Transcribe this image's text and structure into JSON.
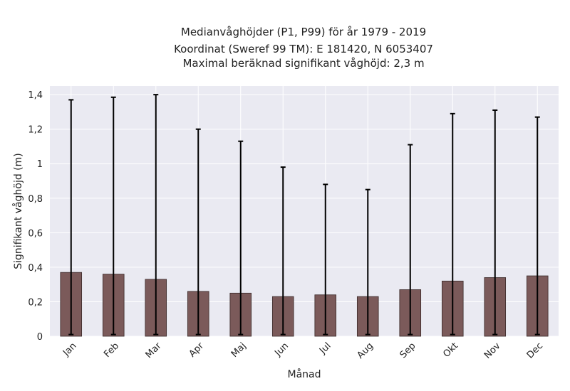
{
  "chart_data": {
    "type": "bar",
    "title_lines": [
      "Medianvåghöjder (P1, P99) för år 1979 - 2019",
      "Koordinat (Sweref 99 TM): E 181420, N 6053407",
      "Maximal beräknad signifikant våghöjd: 2,3 m"
    ],
    "xlabel": "Månad",
    "ylabel": "Signifikant våghöjd (m)",
    "categories": [
      "Jan",
      "Feb",
      "Mar",
      "Apr",
      "Maj",
      "Jun",
      "Jul",
      "Aug",
      "Sep",
      "Okt",
      "Nov",
      "Dec"
    ],
    "series": [
      {
        "values": [
          0.37,
          0.36,
          0.33,
          0.26,
          0.25,
          0.23,
          0.24,
          0.23,
          0.27,
          0.32,
          0.34,
          0.35
        ],
        "error_low": [
          0.01,
          0.01,
          0.01,
          0.01,
          0.01,
          0.01,
          0.01,
          0.01,
          0.01,
          0.01,
          0.01,
          0.01
        ],
        "error_high": [
          1.37,
          1.385,
          1.4,
          1.2,
          1.13,
          0.98,
          0.88,
          0.85,
          1.11,
          1.29,
          1.31,
          1.27
        ]
      }
    ],
    "ylim": [
      0,
      1.45
    ],
    "yticks": [
      0,
      0.2,
      0.4,
      0.6,
      0.8,
      1,
      1.2,
      1.4
    ],
    "ytick_labels": [
      "0",
      "0,2",
      "0,4",
      "0,6",
      "0,8",
      "1",
      "1,2",
      "1,4"
    ],
    "grid": true,
    "colors": {
      "bar": "#7b5a5a",
      "bar_edge": "#3a2a2a",
      "error": "#000000",
      "plot_bg": "#eaeaf2",
      "grid": "#ffffff"
    }
  }
}
